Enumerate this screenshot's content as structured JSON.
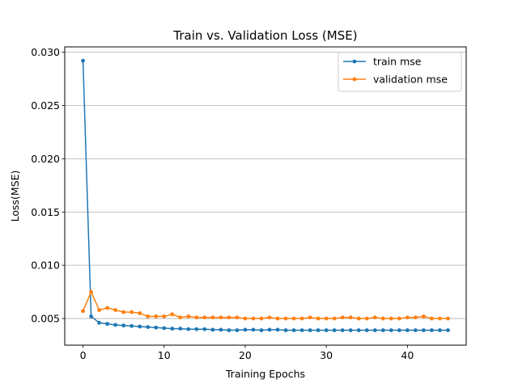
{
  "chart_data": {
    "type": "line",
    "title": "Train vs. Validation Loss (MSE)",
    "xlabel": "Training Epochs",
    "ylabel": "Loss(MSE)",
    "xlim": [
      -2.25,
      47.25
    ],
    "ylim": [
      0.0025,
      0.0305
    ],
    "xticks": [
      0,
      10,
      20,
      30,
      40
    ],
    "xtick_labels": [
      "0",
      "10",
      "20",
      "30",
      "40"
    ],
    "yticks": [
      0.005,
      0.01,
      0.015,
      0.02,
      0.025,
      0.03
    ],
    "ytick_labels": [
      "0.005",
      "0.010",
      "0.015",
      "0.020",
      "0.025",
      "0.030"
    ],
    "grid": "horizontal",
    "legend_position": "top-right",
    "x": [
      0,
      1,
      2,
      3,
      4,
      5,
      6,
      7,
      8,
      9,
      10,
      11,
      12,
      13,
      14,
      15,
      16,
      17,
      18,
      19,
      20,
      21,
      22,
      23,
      24,
      25,
      26,
      27,
      28,
      29,
      30,
      31,
      32,
      33,
      34,
      35,
      36,
      37,
      38,
      39,
      40,
      41,
      42,
      43,
      44,
      45
    ],
    "series": [
      {
        "name": "train mse",
        "color": "#1f77b4",
        "values": [
          0.0292,
          0.0052,
          0.0046,
          0.0045,
          0.0044,
          0.00435,
          0.0043,
          0.00425,
          0.0042,
          0.00415,
          0.0041,
          0.00405,
          0.00405,
          0.004,
          0.004,
          0.004,
          0.00395,
          0.00395,
          0.0039,
          0.0039,
          0.00395,
          0.00395,
          0.0039,
          0.00395,
          0.00395,
          0.0039,
          0.0039,
          0.0039,
          0.0039,
          0.0039,
          0.0039,
          0.0039,
          0.0039,
          0.0039,
          0.0039,
          0.0039,
          0.0039,
          0.0039,
          0.0039,
          0.0039,
          0.0039,
          0.0039,
          0.0039,
          0.0039,
          0.0039,
          0.0039
        ]
      },
      {
        "name": "validation mse",
        "color": "#ff7f0e",
        "values": [
          0.0057,
          0.0075,
          0.0058,
          0.006,
          0.0058,
          0.0056,
          0.0056,
          0.0055,
          0.0052,
          0.0052,
          0.0052,
          0.0054,
          0.0051,
          0.0052,
          0.0051,
          0.0051,
          0.0051,
          0.0051,
          0.0051,
          0.0051,
          0.005,
          0.005,
          0.005,
          0.0051,
          0.005,
          0.005,
          0.005,
          0.005,
          0.0051,
          0.005,
          0.005,
          0.005,
          0.0051,
          0.0051,
          0.005,
          0.005,
          0.0051,
          0.005,
          0.005,
          0.005,
          0.0051,
          0.0051,
          0.0052,
          0.005,
          0.005,
          0.005
        ]
      }
    ]
  }
}
